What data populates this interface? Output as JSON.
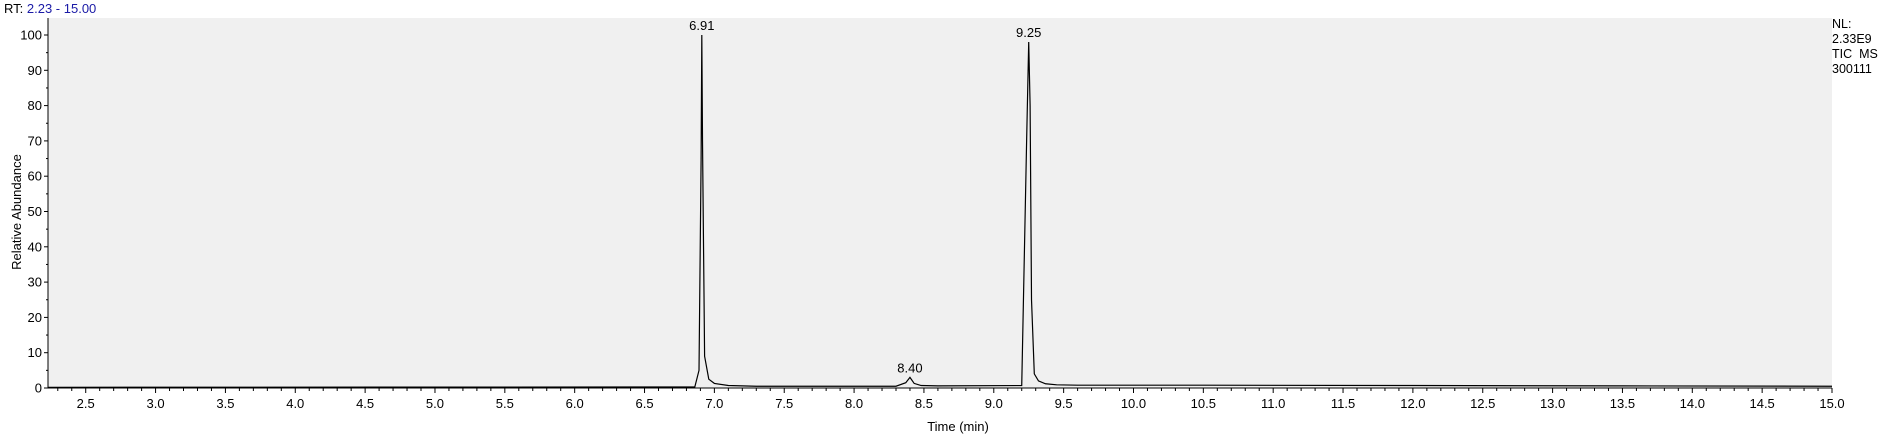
{
  "header": {
    "rt_key": "RT:",
    "rt_range": "2.23 - 15.00"
  },
  "info": {
    "nl_label": "NL:",
    "nl_value": "2.33E9",
    "trace": "TIC  MS",
    "file": "300111"
  },
  "chart_data": {
    "type": "line",
    "xlabel": "Time (min)",
    "ylabel": "Relative Abundance",
    "xlim": [
      2.23,
      15.0
    ],
    "ylim": [
      0,
      100
    ],
    "grid": false,
    "background": "#f0f0f0",
    "line_color": "#000000",
    "x_ticks": [
      "2.5",
      "3.0",
      "3.5",
      "4.0",
      "4.5",
      "5.0",
      "5.5",
      "6.0",
      "6.5",
      "7.0",
      "7.5",
      "8.0",
      "8.5",
      "9.0",
      "9.5",
      "10.0",
      "10.5",
      "11.0",
      "11.5",
      "12.0",
      "12.5",
      "13.0",
      "13.5",
      "14.0",
      "14.5",
      "15.0"
    ],
    "y_ticks": [
      "0",
      "10",
      "20",
      "30",
      "40",
      "50",
      "60",
      "70",
      "80",
      "90",
      "100"
    ],
    "peaks": [
      {
        "rt": 6.91,
        "label": "6.91",
        "height": 100
      },
      {
        "rt": 8.4,
        "label": "8.40",
        "height": 3
      },
      {
        "rt": 9.25,
        "label": "9.25",
        "height": 98
      }
    ],
    "series": [
      {
        "x": [
          2.23,
          6.86,
          6.89,
          6.905,
          6.91,
          6.915,
          6.93,
          6.96,
          7.0,
          7.1,
          7.3,
          8.3,
          8.37,
          8.4,
          8.43,
          8.48,
          8.6,
          9.2,
          9.235,
          9.25,
          9.26,
          9.27,
          9.29,
          9.32,
          9.37,
          9.45,
          9.6,
          10.5,
          12.0,
          13.5,
          15.0
        ],
        "y": [
          0.2,
          0.3,
          5,
          65,
          100,
          70,
          9,
          2.5,
          1.3,
          0.7,
          0.5,
          0.5,
          1.5,
          3,
          1.3,
          0.7,
          0.6,
          0.7,
          70,
          98,
          80,
          25,
          4,
          2,
          1.2,
          0.9,
          0.8,
          0.8,
          0.7,
          0.6,
          0.5
        ]
      }
    ]
  }
}
